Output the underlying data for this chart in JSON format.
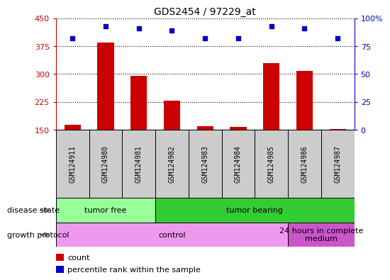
{
  "title": "GDS2454 / 97229_at",
  "samples": [
    "GSM124911",
    "GSM124980",
    "GSM124981",
    "GSM124982",
    "GSM124983",
    "GSM124984",
    "GSM124985",
    "GSM124986",
    "GSM124987"
  ],
  "counts": [
    163,
    385,
    295,
    228,
    160,
    158,
    330,
    308,
    152
  ],
  "percentile_ranks": [
    82,
    93,
    91,
    89,
    82,
    82,
    93,
    91,
    82
  ],
  "ylim_left": [
    150,
    450
  ],
  "ylim_right": [
    0,
    100
  ],
  "yticks_left": [
    150,
    225,
    300,
    375,
    450
  ],
  "yticks_right": [
    0,
    25,
    50,
    75,
    100
  ],
  "bar_color": "#cc0000",
  "scatter_color": "#0000cc",
  "bar_bottom": 150,
  "disease_state_groups": [
    {
      "label": "tumor free",
      "start": 0,
      "end": 2,
      "color": "#99ff99"
    },
    {
      "label": "tumor bearing",
      "start": 3,
      "end": 8,
      "color": "#33cc33"
    }
  ],
  "growth_protocol_groups": [
    {
      "label": "control",
      "start": 0,
      "end": 6,
      "color": "#ee99ee"
    },
    {
      "label": "24 hours in complete\nmedium",
      "start": 7,
      "end": 8,
      "color": "#cc55cc"
    }
  ],
  "legend_count_label": "count",
  "legend_pct_label": "percentile rank within the sample",
  "left_axis_color": "#cc0000",
  "right_axis_color": "#0000cc",
  "background_color": "#ffffff",
  "plot_bg_color": "#ffffff",
  "grid_color": "#000000",
  "label_row1": "disease state",
  "label_row2": "growth protocol",
  "bar_width": 0.5,
  "scatter_size": 25,
  "sample_box_color": "#cccccc",
  "sample_box_edge": "#000000"
}
